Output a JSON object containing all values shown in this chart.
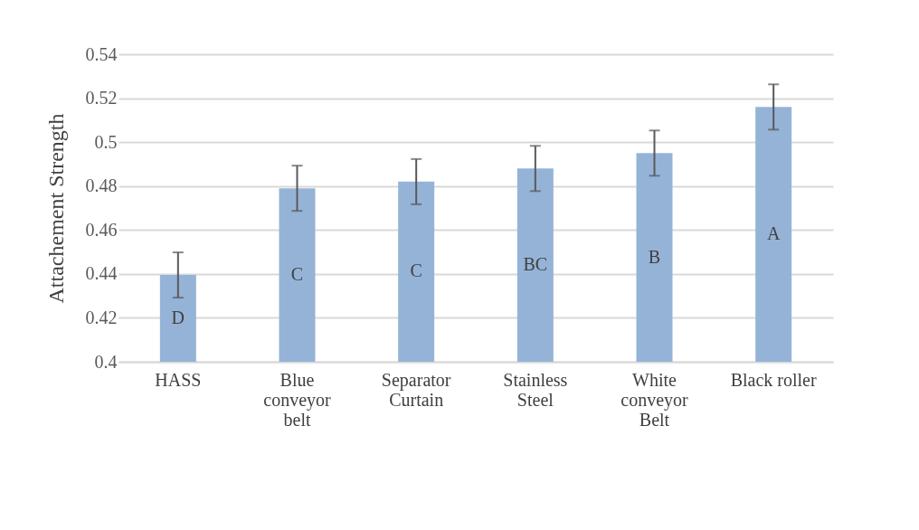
{
  "chart_data": {
    "type": "bar",
    "ylabel": "Attachement Strength",
    "categories": [
      "HASS",
      "Blue conveyor belt",
      "Separator Curtain",
      "Stainless Steel",
      "White conveyor Belt",
      "Black roller"
    ],
    "values": [
      0.4395,
      0.479,
      0.482,
      0.488,
      0.495,
      0.516
    ],
    "errors": [
      0.0103,
      0.0103,
      0.0103,
      0.0103,
      0.0103,
      0.0103
    ],
    "color": "#95b3d7",
    "ylim": [
      0.4,
      0.54
    ],
    "yticks": [
      0.4,
      0.42,
      0.44,
      0.46,
      0.48,
      0.5,
      0.52,
      0.54
    ],
    "grid": "y",
    "annotations": [
      "D",
      "C",
      "C",
      "BC",
      "B",
      "A"
    ]
  }
}
